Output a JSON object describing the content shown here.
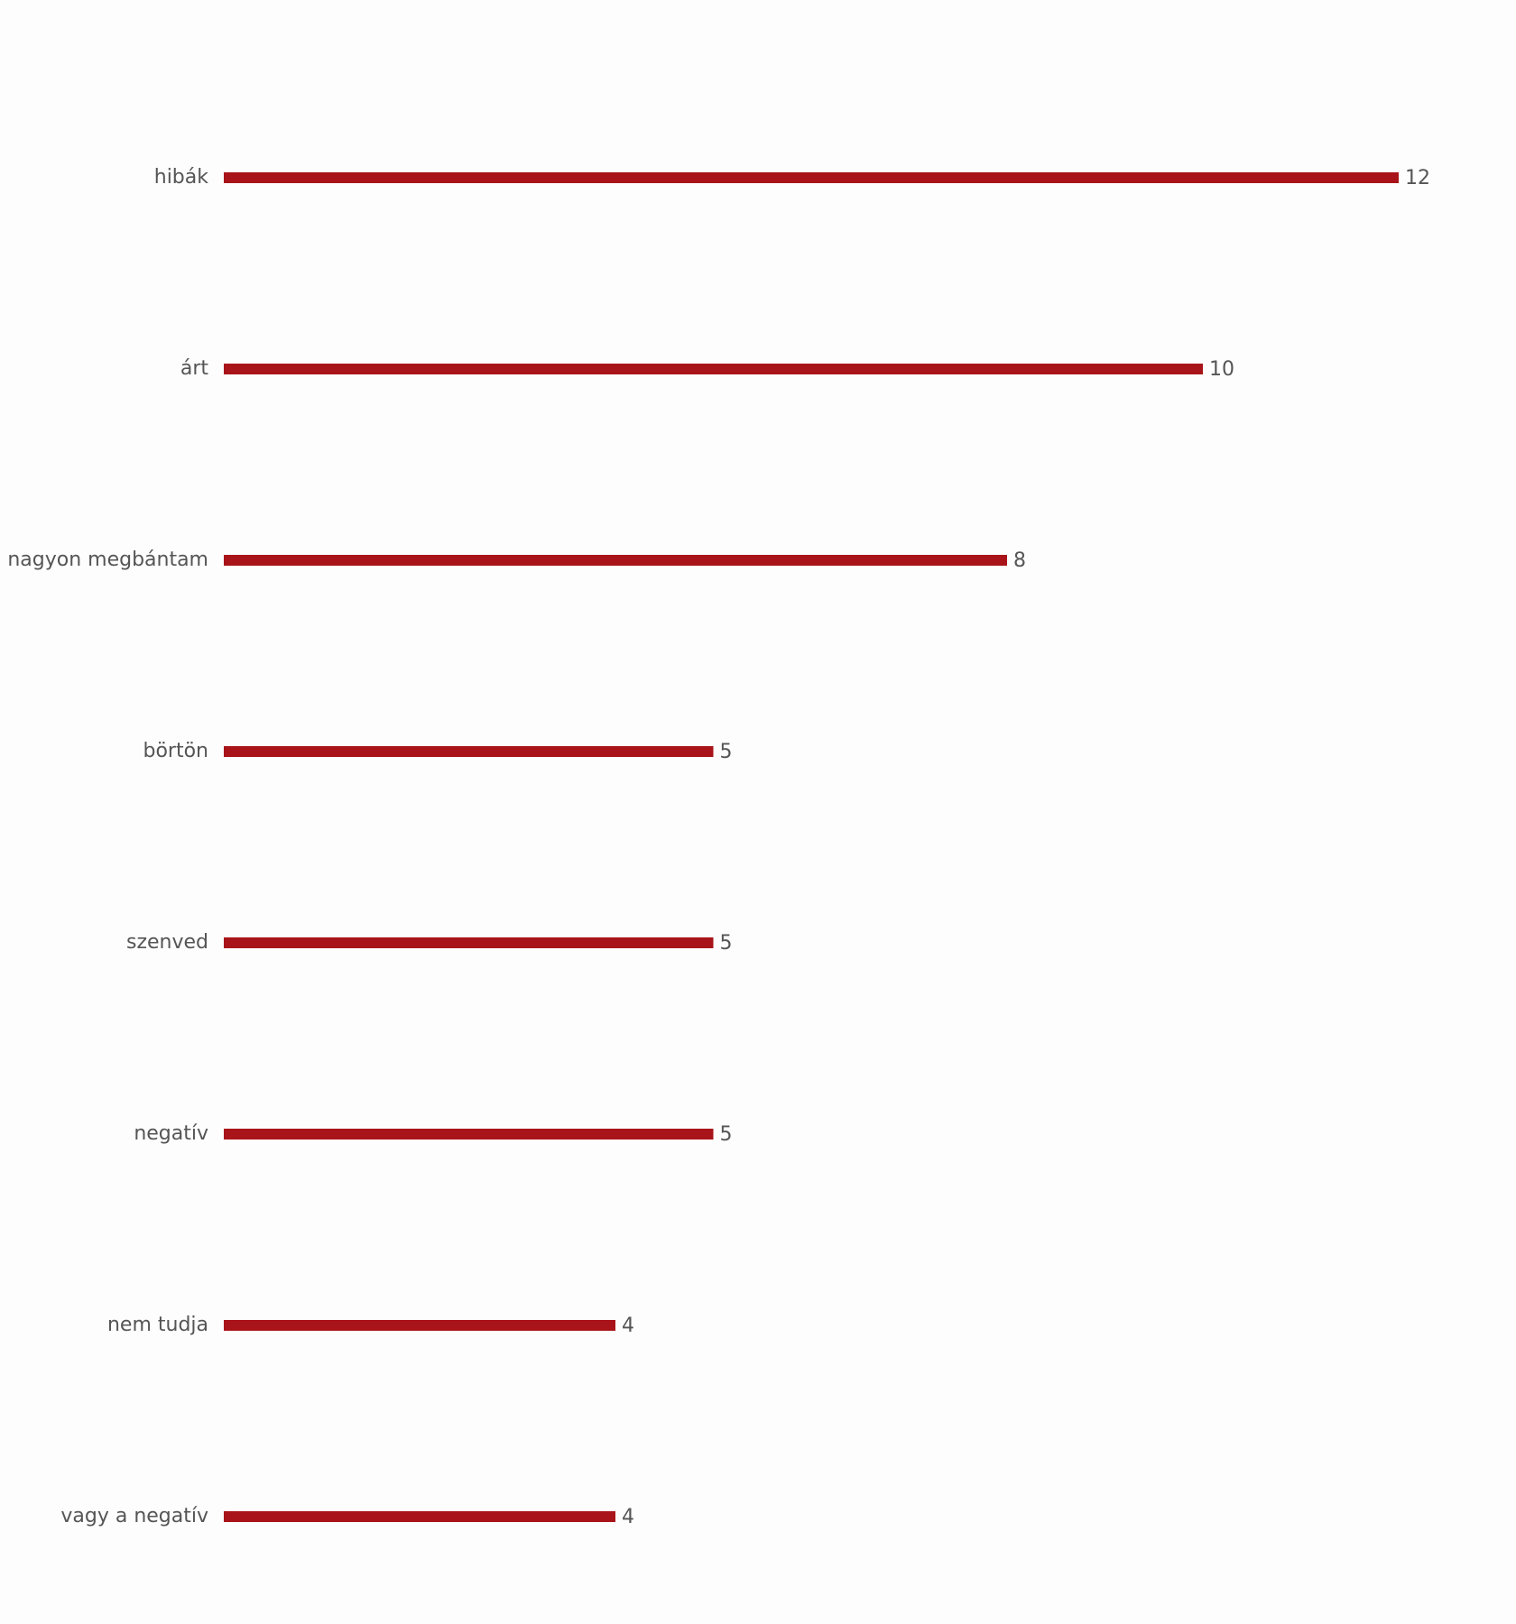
{
  "chart_data": {
    "type": "bar",
    "orientation": "horizontal",
    "categories": [
      "hibák",
      "árt",
      "nagyon megbántam",
      "börtön",
      "szenved",
      "negatív",
      "nem tudja",
      "vagy a negatív"
    ],
    "values": [
      12,
      10,
      8,
      5,
      5,
      5,
      4,
      4
    ],
    "color": "#a81419"
  }
}
